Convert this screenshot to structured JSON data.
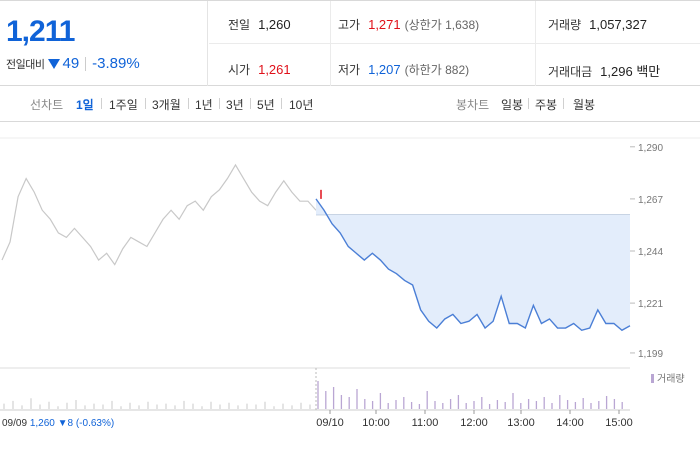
{
  "header": {
    "price": "1,211",
    "change_label": "전일대비",
    "change_value": "49",
    "change_pct": "-3.89%",
    "stats": [
      {
        "label": "전일",
        "value": "1,260",
        "sub": "",
        "color": "default"
      },
      {
        "label": "고가",
        "value": "1,271",
        "sub": "(상한가 1,638)",
        "color": "red"
      },
      {
        "label": "거래량",
        "value": "1,057,327",
        "sub": "",
        "color": "default"
      },
      {
        "label": "시가",
        "value": "1,261",
        "sub": "",
        "color": "red"
      },
      {
        "label": "저가",
        "value": "1,207",
        "sub": "(하한가 882)",
        "color": "blue"
      },
      {
        "label": "거래대금",
        "value": "1,296 백만",
        "sub": "",
        "color": "default"
      }
    ]
  },
  "tabs": {
    "line_label": "선차트",
    "line_periods": [
      "1일",
      "1주일",
      "3개월",
      "1년",
      "3년",
      "5년",
      "10년"
    ],
    "active": "1일",
    "candle_label": "봉차트",
    "candle_periods": [
      "일봉",
      "주봉",
      "월봉"
    ]
  },
  "colors": {
    "up": "#e0111a",
    "down": "#1063d8",
    "prev_day_line": "#c8c8c8",
    "today_line": "#4b7fd6",
    "fill": "#e3edfb",
    "volume": "#b9a6d3"
  },
  "chart_data": {
    "type": "line",
    "ylim": [
      1195,
      1293
    ],
    "yticks": [
      1199,
      1221,
      1244,
      1267,
      1290
    ],
    "ytick_labels": [
      "1,199",
      "1,221",
      "1,244",
      "1,267",
      "1,290"
    ],
    "reference_price": 1260,
    "volume_legend": "거래량",
    "x_labels": [
      "09/10",
      "10:00",
      "11:00",
      "12:00",
      "13:00",
      "14:00",
      "15:00"
    ],
    "prev_day": {
      "date_label": "09/09",
      "close": "1,260",
      "change": "8",
      "change_pct": "(-0.63%)",
      "series": [
        1240,
        1248,
        1268,
        1276,
        1270,
        1262,
        1258,
        1252,
        1250,
        1254,
        1250,
        1246,
        1240,
        1243,
        1238,
        1245,
        1250,
        1248,
        1246,
        1252,
        1258,
        1262,
        1258,
        1264,
        1266,
        1262,
        1268,
        1271,
        1276,
        1282,
        1276,
        1270,
        1266,
        1264,
        1270,
        1275,
        1270,
        1266,
        1266,
        1262
      ]
    },
    "today": {
      "series": [
        1267,
        1262,
        1256,
        1252,
        1246,
        1243,
        1240,
        1243,
        1240,
        1236,
        1234,
        1231,
        1229,
        1218,
        1213,
        1210,
        1214,
        1216,
        1212,
        1213,
        1216,
        1210,
        1213,
        1224,
        1212,
        1212,
        1210,
        1220,
        1212,
        1214,
        1210,
        1210,
        1212,
        1209,
        1210,
        1218,
        1212,
        1212,
        1209,
        1211
      ]
    }
  }
}
